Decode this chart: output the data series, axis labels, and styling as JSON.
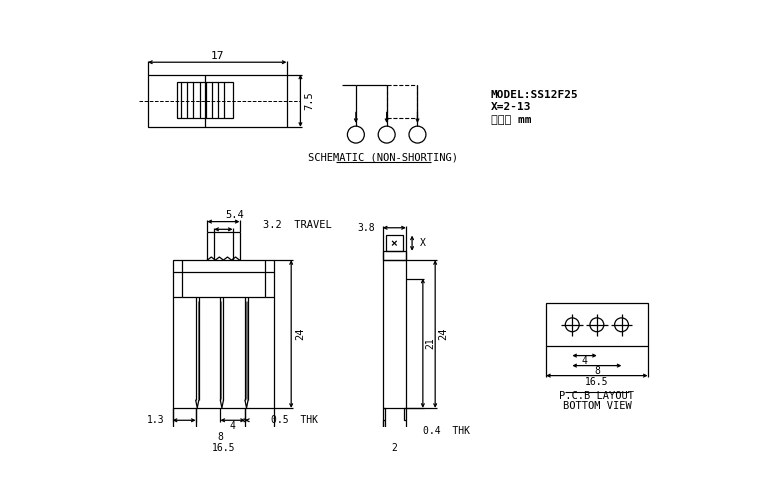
{
  "bg_color": "#ffffff",
  "line_color": "#000000",
  "fig_width": 7.68,
  "fig_height": 4.8,
  "model_text1": "MODEL:SS12F25",
  "model_text2": "X=2-13",
  "model_text3": "单位： mm",
  "schematic_label": "SCHEMATIC (NON-SHORTING)",
  "pcb_label1": "P.C.B LAYOUT",
  "pcb_label2": "BOTTOM VIEW"
}
